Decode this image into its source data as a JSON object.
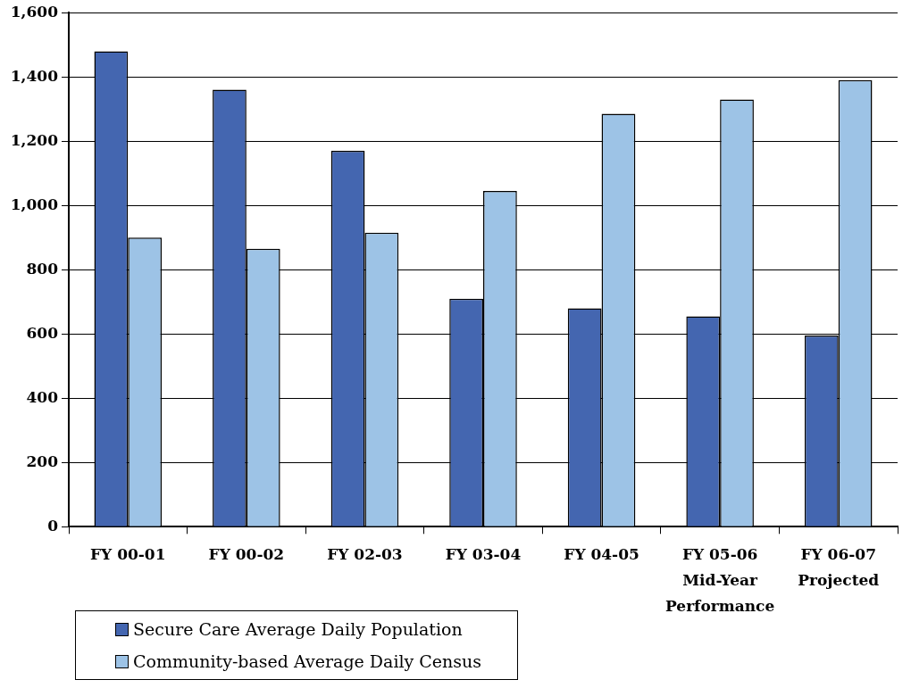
{
  "chart_data": {
    "type": "bar",
    "categories": [
      "FY 00-01",
      "FY 00-02",
      "FY 02-03",
      "FY 03-04",
      "FY 04-05",
      "FY 05-06 Mid-Year Performance",
      "FY 06-07 Projected"
    ],
    "series": [
      {
        "name": "Secure Care Average Daily Population",
        "color": "#4466b0",
        "values": [
          1480,
          1360,
          1170,
          710,
          680,
          655,
          595
        ]
      },
      {
        "name": "Community-based Average Daily Census",
        "color": "#9dc3e6",
        "values": [
          900,
          865,
          915,
          1045,
          1285,
          1330,
          1390
        ]
      }
    ],
    "ylim": [
      0,
      1600
    ],
    "yticks": [
      0,
      200,
      400,
      600,
      800,
      {
        "value": 1000,
        "label": "1,000"
      },
      {
        "value": 1200,
        "label": "1,200"
      },
      {
        "value": 1400,
        "label": "1,400"
      },
      {
        "value": 1600,
        "label": "1,600"
      }
    ],
    "grid": "y",
    "legend": "bottom left"
  }
}
